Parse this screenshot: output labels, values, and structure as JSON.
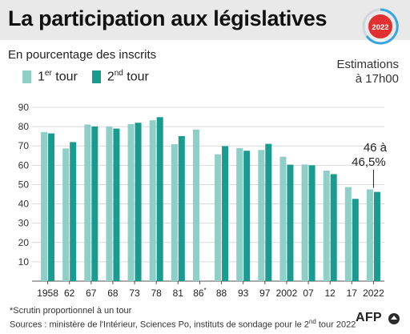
{
  "header": {
    "title": "La participation aux législatives",
    "badge_label": "2022",
    "badge_color": "#e03030"
  },
  "subtitle": "En pourcentage des inscrits",
  "legend": {
    "tour1": {
      "label_main": "1",
      "label_sup": "er",
      "label_rest": " tour",
      "color": "#8ecfc8"
    },
    "tour2": {
      "label_main": "2",
      "label_sup": "nd",
      "label_rest": " tour",
      "color": "#1a9b8f"
    }
  },
  "estimations": {
    "line1": "Estimations",
    "line2": "à 17h00"
  },
  "annotation": {
    "line1": "46 à",
    "line2": "46,5%"
  },
  "chart_data": {
    "type": "bar",
    "categories": [
      "1958",
      "62",
      "67",
      "68",
      "73",
      "78",
      "81",
      "86*",
      "88",
      "93",
      "97",
      "2002",
      "07",
      "12",
      "17",
      "2022"
    ],
    "series": [
      {
        "name": "1er tour",
        "values": [
          77.2,
          68.7,
          81.1,
          80.0,
          81.3,
          83.3,
          70.9,
          78.5,
          65.7,
          68.9,
          67.9,
          64.4,
          60.4,
          57.2,
          48.7,
          47.5
        ]
      },
      {
        "name": "2nd tour",
        "values": [
          76.5,
          72.0,
          80.1,
          79.0,
          82.0,
          84.9,
          75.1,
          null,
          69.9,
          67.5,
          71.1,
          60.3,
          60.0,
          55.4,
          42.6,
          46.2
        ]
      }
    ],
    "ylim": [
      0,
      90
    ],
    "yticks": [
      10,
      20,
      30,
      40,
      50,
      60,
      70,
      80,
      90
    ],
    "grid": true
  },
  "footer": {
    "note": "*Scrutin proportionnel à un tour",
    "sources_main": "Sources : ministère de l'Intérieur, Sciences Po, instituts de sondage pour le 2",
    "sources_sup": "nd",
    "sources_rest": " tour 2022",
    "logo_text": "AFP"
  }
}
